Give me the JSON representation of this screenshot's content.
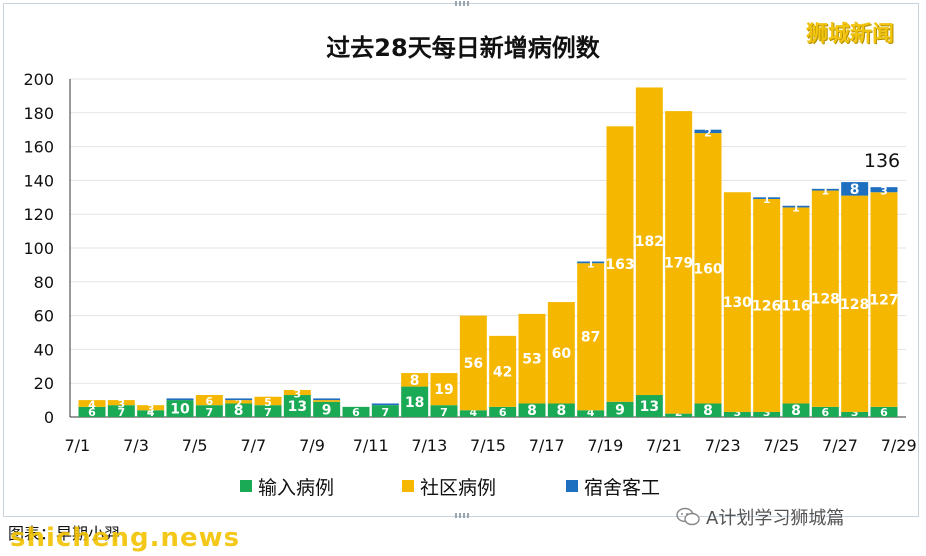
{
  "brand": "狮城新闻",
  "watermark": "shicheng.news",
  "source_note": "图表：早期小羿",
  "wechat_account": "A计划学习狮城篇",
  "colors": {
    "imported": "#1aaa55",
    "community": "#f5b700",
    "dorm": "#1f6fc0",
    "grid": "#e3e3e3",
    "axis": "#333333"
  },
  "chart_data": {
    "type": "bar",
    "stacked": true,
    "title": "过去28天每日新增病例数",
    "xlabel": "",
    "ylabel": "",
    "ylim": [
      0,
      200
    ],
    "yticks": [
      "0",
      "20",
      "40",
      "60",
      "80",
      "100",
      "120",
      "140",
      "160",
      "180",
      "200"
    ],
    "x_tick_labels": [
      "7/1",
      "7/3",
      "7/5",
      "7/7",
      "7/9",
      "7/11",
      "7/13",
      "7/15",
      "7/17",
      "7/19",
      "7/21",
      "7/23",
      "7/25",
      "7/27",
      "7/29"
    ],
    "categories": [
      "7/1",
      "7/2",
      "7/3",
      "7/4",
      "7/5",
      "7/6",
      "7/7",
      "7/8",
      "7/9",
      "7/10",
      "7/11",
      "7/12",
      "7/13",
      "7/14",
      "7/15",
      "7/16",
      "7/17",
      "7/18",
      "7/19",
      "7/20",
      "7/21",
      "7/22",
      "7/23",
      "7/24",
      "7/25",
      "7/26",
      "7/27",
      "7/28"
    ],
    "series": [
      {
        "name": "输入病例",
        "values": [
          6,
          7,
          4,
          10,
          7,
          8,
          7,
          13,
          9,
          6,
          7,
          18,
          7,
          4,
          6,
          8,
          8,
          4,
          9,
          13,
          2,
          8,
          3,
          3,
          8,
          6,
          3,
          6
        ]
      },
      {
        "name": "社区病例",
        "values": [
          4,
          3,
          3,
          0,
          6,
          2,
          5,
          3,
          1,
          0,
          0,
          8,
          19,
          56,
          42,
          53,
          60,
          87,
          163,
          182,
          179,
          160,
          130,
          126,
          116,
          128,
          128,
          127
        ]
      },
      {
        "name": "宿舍客工",
        "values": [
          0,
          0,
          0,
          1,
          0,
          1,
          0,
          0,
          1,
          0,
          1,
          0,
          0,
          0,
          0,
          0,
          0,
          1,
          0,
          0,
          0,
          2,
          0,
          1,
          1,
          1,
          8,
          3
        ]
      }
    ],
    "inner_labels": {
      "imported": [
        "6",
        "7",
        "4",
        "10",
        "7",
        "8",
        "7",
        "13",
        "9",
        "6",
        "7",
        "18",
        "7",
        "4",
        "6",
        "8",
        "8",
        "4",
        "9",
        "13",
        "2",
        "8",
        "3",
        "3",
        "8",
        "6",
        "3",
        "6"
      ],
      "community": [
        "4",
        "3",
        "3",
        "",
        "6",
        "2",
        "5",
        "3",
        "",
        "",
        "",
        "8",
        "19",
        "56",
        "42",
        "53",
        "60",
        "87",
        "163",
        "182",
        "179",
        "160",
        "130",
        "126",
        "116",
        "128",
        "128",
        "127"
      ],
      "dorm": [
        "",
        "",
        "",
        "",
        "",
        "",
        "",
        "",
        "",
        "",
        "",
        "",
        "",
        "",
        "",
        "",
        "",
        "1",
        "",
        "",
        "",
        "2",
        "",
        "1",
        "1",
        "1",
        "8",
        "3"
      ]
    },
    "annotation": "136",
    "legend_position": "bottom",
    "grid": true
  }
}
